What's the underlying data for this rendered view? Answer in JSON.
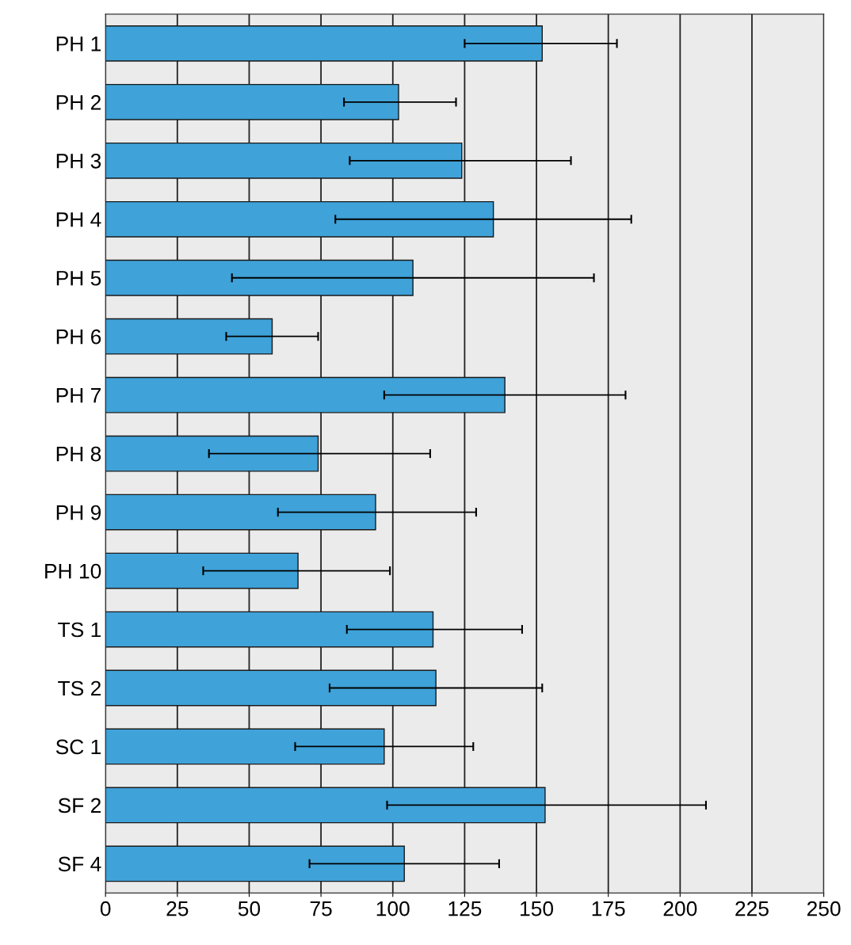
{
  "chart_data": {
    "type": "bar",
    "orientation": "horizontal",
    "categories": [
      "PH 1",
      "PH 2",
      "PH 3",
      "PH 4",
      "PH 5",
      "PH 6",
      "PH 7",
      "PH 8",
      "PH 9",
      "PH 10",
      "TS 1",
      "TS 2",
      "SC 1",
      "SF 2",
      "SF 4"
    ],
    "values": [
      152,
      102,
      124,
      135,
      107,
      58,
      139,
      74,
      94,
      67,
      114,
      115,
      97,
      153,
      104
    ],
    "errors": [
      [
        125,
        178
      ],
      [
        83,
        122
      ],
      [
        85,
        162
      ],
      [
        80,
        183
      ],
      [
        44,
        170
      ],
      [
        42,
        74
      ],
      [
        97,
        181
      ],
      [
        36,
        113
      ],
      [
        60,
        129
      ],
      [
        34,
        99
      ],
      [
        84,
        145
      ],
      [
        78,
        152
      ],
      [
        66,
        128
      ],
      [
        98,
        209
      ],
      [
        71,
        137
      ]
    ],
    "color": "#3fa2d9",
    "xlim": [
      0,
      250
    ],
    "xticks": [
      0,
      25,
      50,
      75,
      100,
      125,
      150,
      175,
      200,
      225,
      250
    ],
    "grid": "x"
  }
}
